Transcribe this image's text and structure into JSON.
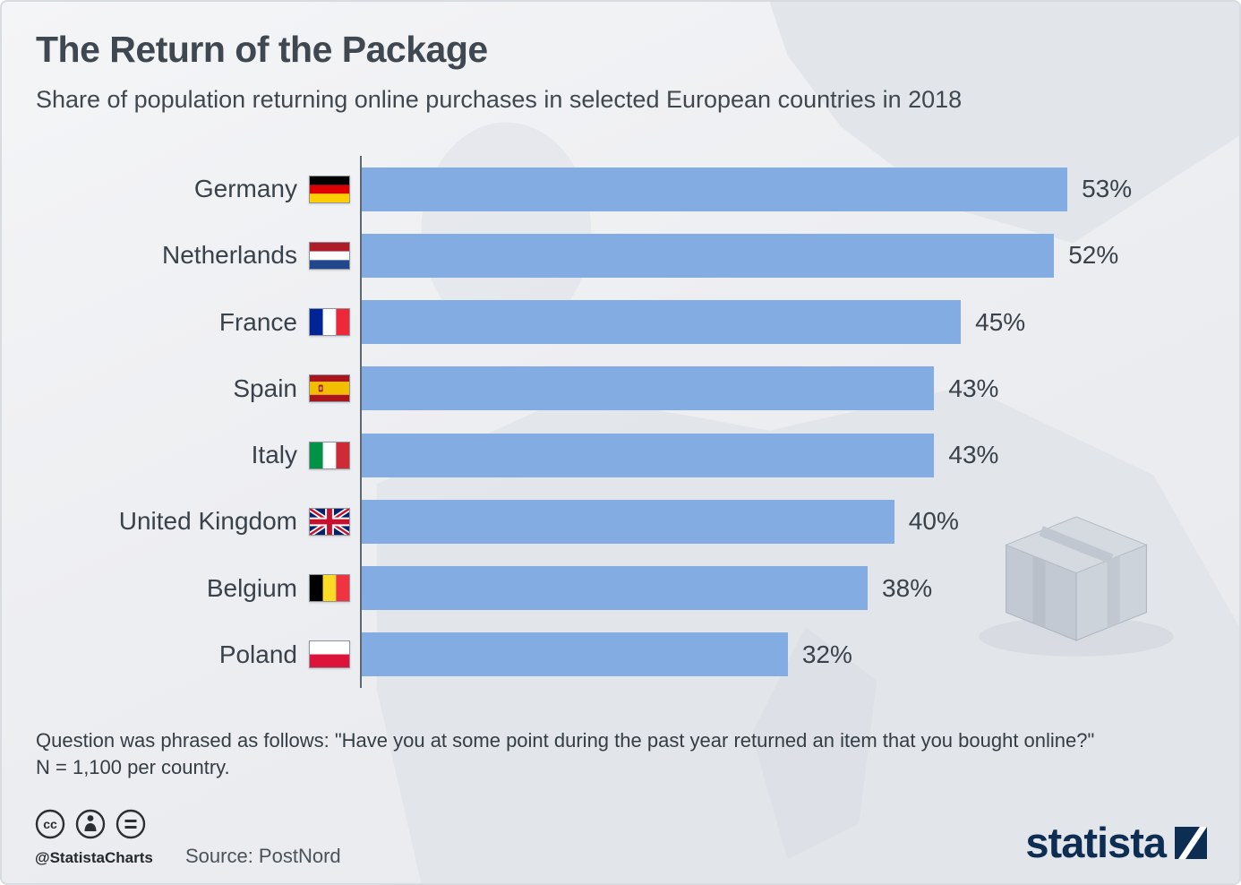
{
  "header": {
    "title": "The Return of the Package",
    "subtitle": "Share of population returning online purchases in selected European countries in 2018"
  },
  "chart_data": {
    "type": "bar",
    "orientation": "horizontal",
    "title": "The Return of the Package",
    "xlabel": "",
    "ylabel": "",
    "xlim": [
      0,
      56
    ],
    "grid": false,
    "legend": "none",
    "categories": [
      "Germany",
      "Netherlands",
      "France",
      "Spain",
      "Italy",
      "United Kingdom",
      "Belgium",
      "Poland"
    ],
    "values": [
      53,
      52,
      45,
      43,
      43,
      40,
      38,
      32
    ],
    "value_labels": [
      "53%",
      "52%",
      "45%",
      "43%",
      "43%",
      "40%",
      "38%",
      "32%"
    ],
    "flags": [
      "de",
      "nl",
      "fr",
      "es",
      "it",
      "gb",
      "be",
      "pl"
    ],
    "bar_color": "#83ace3"
  },
  "footer": {
    "note_line1": "Question was phrased as follows: \"Have you at some point during the past year returned an item that you bought online?\"",
    "note_line2": "N = 1,100 per country.",
    "credit": "@StatistaCharts",
    "source": "Source: PostNord",
    "brand": "statista"
  },
  "icons": {
    "badges": [
      "cc-license-icon",
      "cc-attribution-icon",
      "cc-no-derivatives-icon"
    ],
    "decoration": [
      "europe-map-background",
      "package-box-icon",
      "statista-logo-icon"
    ],
    "flag_icons": [
      "de-flag-icon",
      "nl-flag-icon",
      "fr-flag-icon",
      "es-flag-icon",
      "it-flag-icon",
      "gb-flag-icon",
      "be-flag-icon",
      "pl-flag-icon"
    ]
  },
  "colors": {
    "bar": "#83ace3",
    "title_text": "#3f4850",
    "brand_navy": "#0d2e52",
    "background": "#edeff2",
    "axis": "#5e6873"
  }
}
